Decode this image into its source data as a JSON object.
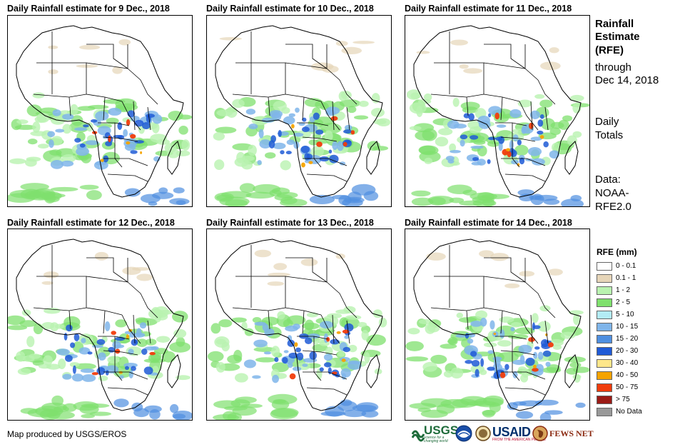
{
  "panels": [
    {
      "title": "Daily Rainfall estimate for 9 Dec., 2018",
      "seed": 9
    },
    {
      "title": "Daily Rainfall estimate for 10 Dec., 2018",
      "seed": 10
    },
    {
      "title": "Daily Rainfall estimate for 11 Dec., 2018",
      "seed": 11
    },
    {
      "title": "Daily Rainfall estimate for 12 Dec., 2018",
      "seed": 12
    },
    {
      "title": "Daily Rainfall estimate for 13 Dec., 2018",
      "seed": 13
    },
    {
      "title": "Daily Rainfall estimate for 14 Dec., 2018",
      "seed": 14
    }
  ],
  "side": {
    "title_line1": "Rainfall",
    "title_line2": "Estimate",
    "title_line3": "(RFE)",
    "through_label": "through",
    "through_date": "Dec 14, 2018",
    "totals_line1": "Daily",
    "totals_line2": "Totals",
    "data_line1": "Data:",
    "data_line2": "NOAA-",
    "data_line3": "RFE2.0"
  },
  "legend": {
    "title": "RFE (mm)",
    "items": [
      {
        "label": "0 - 0.1",
        "color": "#ffffff"
      },
      {
        "label": "0.1 - 1",
        "color": "#e6d5b8"
      },
      {
        "label": "1 - 2",
        "color": "#b9f2b0"
      },
      {
        "label": "2 - 5",
        "color": "#7fe06d"
      },
      {
        "label": "5 - 10",
        "color": "#b3ecf5"
      },
      {
        "label": "10 - 15",
        "color": "#7fb5ea"
      },
      {
        "label": "15 - 20",
        "color": "#4f8fe0"
      },
      {
        "label": "20 - 30",
        "color": "#1f5ad6"
      },
      {
        "label": "30 - 40",
        "color": "#fde68a"
      },
      {
        "label": "40 - 50",
        "color": "#f5a300"
      },
      {
        "label": "50 - 75",
        "color": "#f03c0c"
      },
      {
        "label": "> 75",
        "color": "#9b1b16"
      },
      {
        "label": "No Data",
        "color": "#999999"
      }
    ]
  },
  "footer": {
    "credit": "Map produced by USGS/EROS",
    "usgs": "USGS",
    "usgs_tag": "science for a changing world",
    "usaid": "USAID",
    "usaid_tag": "FROM THE AMERICAN PEOPLE",
    "fewsnet": "FEWS NET"
  }
}
